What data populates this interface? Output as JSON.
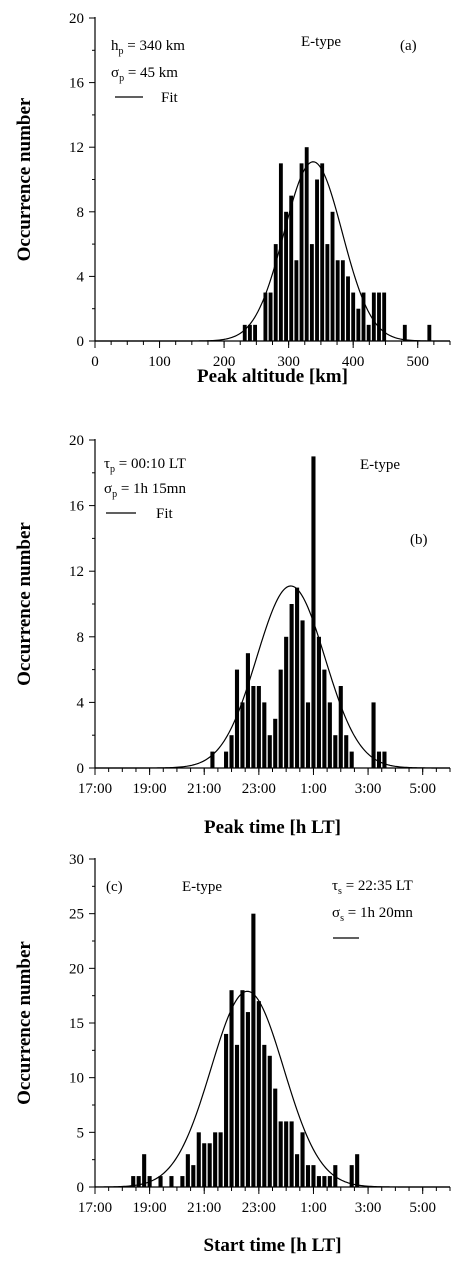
{
  "chart_data": [
    {
      "panel": "a",
      "type": "bar",
      "panel_label": "(a)",
      "type_label": "E-type",
      "xlabel": "Peak altitude [km]",
      "ylabel": "Occurrence number",
      "xlim": [
        0,
        550
      ],
      "ylim": [
        0,
        20
      ],
      "x_tick_values": [
        0,
        100,
        200,
        300,
        400,
        500
      ],
      "x_tick_labels": [
        "0",
        "100",
        "200",
        "300",
        "400",
        "500"
      ],
      "y_ticks": [
        0,
        4,
        8,
        12,
        16,
        20
      ],
      "bar_width": 6,
      "fit": {
        "type": "gaussian",
        "center": 338,
        "sigma": 45,
        "amplitude": 11.1
      },
      "stats": [
        {
          "sym": "h",
          "sub": "p",
          "text": " = 340 km"
        },
        {
          "sym": "σ",
          "sub": "p",
          "text": " = 45 km"
        }
      ],
      "fit_label": "Fit",
      "bars": [
        {
          "x": 232,
          "y": 1
        },
        {
          "x": 240,
          "y": 1
        },
        {
          "x": 248,
          "y": 1
        },
        {
          "x": 264,
          "y": 3
        },
        {
          "x": 272,
          "y": 3
        },
        {
          "x": 280,
          "y": 6
        },
        {
          "x": 288,
          "y": 11
        },
        {
          "x": 296,
          "y": 8
        },
        {
          "x": 304,
          "y": 9
        },
        {
          "x": 312,
          "y": 5
        },
        {
          "x": 320,
          "y": 11
        },
        {
          "x": 328,
          "y": 12
        },
        {
          "x": 336,
          "y": 6
        },
        {
          "x": 344,
          "y": 10
        },
        {
          "x": 352,
          "y": 11
        },
        {
          "x": 360,
          "y": 6
        },
        {
          "x": 368,
          "y": 8
        },
        {
          "x": 376,
          "y": 5
        },
        {
          "x": 384,
          "y": 5
        },
        {
          "x": 392,
          "y": 4
        },
        {
          "x": 400,
          "y": 3
        },
        {
          "x": 408,
          "y": 2
        },
        {
          "x": 416,
          "y": 3
        },
        {
          "x": 424,
          "y": 1
        },
        {
          "x": 432,
          "y": 3
        },
        {
          "x": 440,
          "y": 3
        },
        {
          "x": 448,
          "y": 3
        },
        {
          "x": 480,
          "y": 1
        },
        {
          "x": 518,
          "y": 1
        }
      ]
    },
    {
      "panel": "b",
      "type": "bar",
      "panel_label": "(b)",
      "type_label": "E-type",
      "xlabel": "Peak time [h LT]",
      "ylabel": "Occurrence number",
      "xlim": [
        -7,
        6
      ],
      "ylim": [
        0,
        20
      ],
      "x_tick_values": [
        -7,
        -5,
        -3,
        -1,
        1,
        3,
        5
      ],
      "x_tick_labels": [
        "17:00",
        "19:00",
        "21:00",
        "23:00",
        "1:00",
        "3:00",
        "5:00"
      ],
      "y_ticks": [
        0,
        4,
        8,
        12,
        16,
        20
      ],
      "bar_width": 0.15,
      "fit": {
        "type": "gaussian",
        "center": 0.17,
        "sigma": 1.25,
        "amplitude": 11.1
      },
      "stats": [
        {
          "sym": "τ",
          "sub": "p",
          "text": " = 00:10 LT"
        },
        {
          "sym": "σ",
          "sub": "p",
          "text": " = 1h 15mn"
        }
      ],
      "fit_label": "Fit",
      "bars": [
        {
          "x": -2.7,
          "y": 1
        },
        {
          "x": -2.2,
          "y": 1
        },
        {
          "x": -2.0,
          "y": 2
        },
        {
          "x": -1.8,
          "y": 6
        },
        {
          "x": -1.6,
          "y": 4
        },
        {
          "x": -1.4,
          "y": 7
        },
        {
          "x": -1.2,
          "y": 5
        },
        {
          "x": -1.0,
          "y": 5
        },
        {
          "x": -0.8,
          "y": 4
        },
        {
          "x": -0.6,
          "y": 2
        },
        {
          "x": -0.4,
          "y": 3
        },
        {
          "x": -0.2,
          "y": 6
        },
        {
          "x": 0.0,
          "y": 8
        },
        {
          "x": 0.2,
          "y": 10
        },
        {
          "x": 0.4,
          "y": 11
        },
        {
          "x": 0.6,
          "y": 9
        },
        {
          "x": 0.8,
          "y": 4
        },
        {
          "x": 1.0,
          "y": 19
        },
        {
          "x": 1.2,
          "y": 8
        },
        {
          "x": 1.4,
          "y": 6
        },
        {
          "x": 1.6,
          "y": 4
        },
        {
          "x": 1.8,
          "y": 2
        },
        {
          "x": 2.0,
          "y": 5
        },
        {
          "x": 2.2,
          "y": 2
        },
        {
          "x": 2.4,
          "y": 1
        },
        {
          "x": 3.2,
          "y": 4
        },
        {
          "x": 3.4,
          "y": 1
        },
        {
          "x": 3.6,
          "y": 1
        }
      ]
    },
    {
      "panel": "c",
      "type": "bar",
      "panel_label": "(c)",
      "type_label": "E-type",
      "xlabel": "Start time [h LT]",
      "ylabel": "Occurrence number",
      "xlim": [
        -7,
        6
      ],
      "ylim": [
        0,
        30
      ],
      "x_tick_values": [
        -7,
        -5,
        -3,
        -1,
        1,
        3,
        5
      ],
      "x_tick_labels": [
        "17:00",
        "19:00",
        "21:00",
        "23:00",
        "1:00",
        "3:00",
        "5:00"
      ],
      "y_ticks": [
        0,
        5,
        10,
        15,
        20,
        25,
        30
      ],
      "bar_width": 0.15,
      "fit": {
        "type": "gaussian",
        "center": -1.42,
        "sigma": 1.33,
        "amplitude": 17.9
      },
      "stats": [
        {
          "sym": "τ",
          "sub": "s",
          "text": " = 22:35 LT"
        },
        {
          "sym": "σ",
          "sub": "s",
          "text": " = 1h 20mn"
        }
      ],
      "fit_label": "",
      "bars": [
        {
          "x": -5.6,
          "y": 1
        },
        {
          "x": -5.4,
          "y": 1
        },
        {
          "x": -5.2,
          "y": 3
        },
        {
          "x": -5.0,
          "y": 1
        },
        {
          "x": -4.6,
          "y": 1
        },
        {
          "x": -4.2,
          "y": 1
        },
        {
          "x": -3.8,
          "y": 1
        },
        {
          "x": -3.6,
          "y": 3
        },
        {
          "x": -3.4,
          "y": 2
        },
        {
          "x": -3.2,
          "y": 5
        },
        {
          "x": -3.0,
          "y": 4
        },
        {
          "x": -2.8,
          "y": 4
        },
        {
          "x": -2.6,
          "y": 5
        },
        {
          "x": -2.4,
          "y": 5
        },
        {
          "x": -2.2,
          "y": 14
        },
        {
          "x": -2.0,
          "y": 18
        },
        {
          "x": -1.8,
          "y": 13
        },
        {
          "x": -1.6,
          "y": 18
        },
        {
          "x": -1.4,
          "y": 16
        },
        {
          "x": -1.2,
          "y": 25
        },
        {
          "x": -1.0,
          "y": 17
        },
        {
          "x": -0.8,
          "y": 13
        },
        {
          "x": -0.6,
          "y": 12
        },
        {
          "x": -0.4,
          "y": 9
        },
        {
          "x": -0.2,
          "y": 6
        },
        {
          "x": 0.0,
          "y": 6
        },
        {
          "x": 0.2,
          "y": 6
        },
        {
          "x": 0.4,
          "y": 3
        },
        {
          "x": 0.6,
          "y": 5
        },
        {
          "x": 0.8,
          "y": 2
        },
        {
          "x": 1.0,
          "y": 2
        },
        {
          "x": 1.2,
          "y": 1
        },
        {
          "x": 1.4,
          "y": 1
        },
        {
          "x": 1.6,
          "y": 1
        },
        {
          "x": 1.8,
          "y": 2
        },
        {
          "x": 2.4,
          "y": 2
        },
        {
          "x": 2.6,
          "y": 3
        }
      ]
    }
  ]
}
